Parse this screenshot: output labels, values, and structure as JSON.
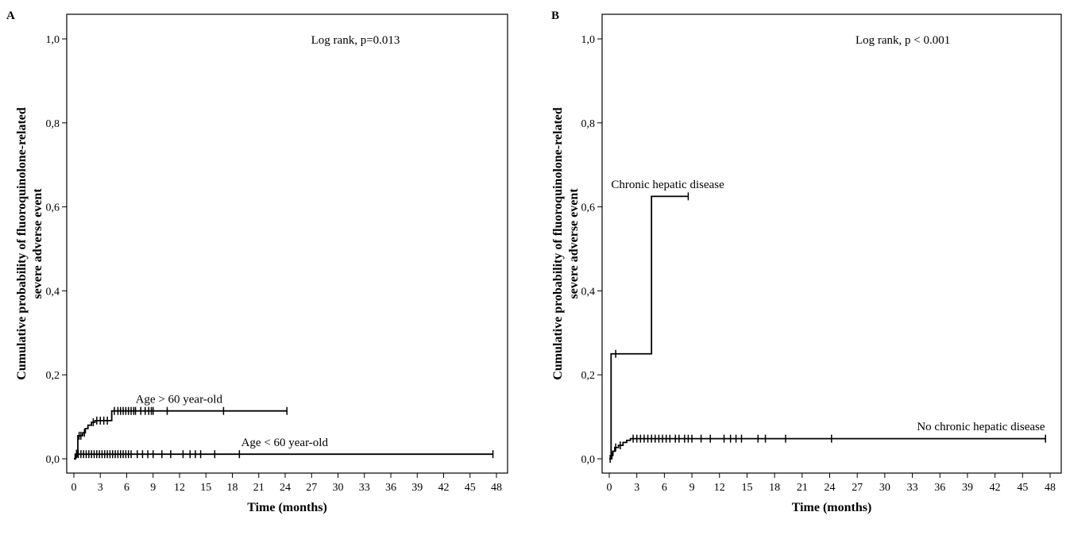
{
  "chart_data": [
    {
      "panel": "A",
      "type": "line",
      "step": true,
      "annotation": "Log rank, p=0.013",
      "xlabel": "Time (months)",
      "ylabel_lines": [
        "Cumulative probability of fluoroquinolone-related",
        "severe adverse event"
      ],
      "xlim": [
        0,
        48
      ],
      "ylim": [
        0,
        1
      ],
      "x_ticks": [
        0,
        3,
        6,
        9,
        12,
        15,
        18,
        21,
        24,
        27,
        30,
        33,
        36,
        39,
        42,
        45,
        48
      ],
      "y_ticks": [
        0.0,
        0.2,
        0.4,
        0.6,
        0.8,
        1.0
      ],
      "y_tick_labels": [
        "0,0",
        "0,2",
        "0,4",
        "0,6",
        "0,8",
        "1,0"
      ],
      "series": [
        {
          "name": "Age > 60 year-old",
          "steps": [
            [
              0,
              0
            ],
            [
              0.2,
              0.005
            ],
            [
              0.35,
              0.02
            ],
            [
              0.45,
              0.055
            ],
            [
              1.0,
              0.062
            ],
            [
              1.3,
              0.072
            ],
            [
              1.6,
              0.08
            ],
            [
              2.0,
              0.087
            ],
            [
              2.4,
              0.091
            ],
            [
              4.3,
              0.114
            ],
            [
              24.2,
              0.114
            ]
          ],
          "censored": [
            0.6,
            0.8,
            1.2,
            2.2,
            2.6,
            3.0,
            3.4,
            3.8,
            4.6,
            5.0,
            5.3,
            5.6,
            5.9,
            6.2,
            6.5,
            6.8,
            7.0,
            7.6,
            8.1,
            8.5,
            8.8,
            9.0,
            10.6,
            17.0,
            24.2
          ],
          "label_at": [
            7.0,
            0.133
          ]
        },
        {
          "name": "Age < 60 year-old",
          "steps": [
            [
              0,
              0
            ],
            [
              0.15,
              0.011
            ],
            [
              47.6,
              0.011
            ]
          ],
          "censored": [
            0.3,
            0.5,
            0.8,
            1.1,
            1.4,
            1.7,
            2.0,
            2.3,
            2.6,
            2.9,
            3.2,
            3.5,
            3.8,
            4.1,
            4.4,
            4.7,
            5.0,
            5.3,
            5.6,
            5.9,
            6.2,
            6.5,
            7.2,
            7.8,
            8.4,
            9.0,
            10.0,
            11.0,
            12.4,
            13.2,
            13.8,
            14.4,
            16.0,
            18.8,
            47.6
          ],
          "label_at": [
            19.0,
            0.03
          ]
        }
      ]
    },
    {
      "panel": "B",
      "type": "line",
      "step": true,
      "annotation": "Log rank, p < 0.001",
      "xlabel": "Time (months)",
      "ylabel_lines": [
        "Cumulative probability of fluoroquinolone-related",
        "severe adverse event"
      ],
      "xlim": [
        0,
        48
      ],
      "ylim": [
        0,
        1
      ],
      "x_ticks": [
        0,
        3,
        6,
        9,
        12,
        15,
        18,
        21,
        24,
        27,
        30,
        33,
        36,
        39,
        42,
        45,
        48
      ],
      "y_ticks": [
        0.0,
        0.2,
        0.4,
        0.6,
        0.8,
        1.0
      ],
      "y_tick_labels": [
        "0,0",
        "0,2",
        "0,4",
        "0,6",
        "0,8",
        "1,0"
      ],
      "series": [
        {
          "name": "Chronic hepatic disease",
          "steps": [
            [
              0,
              0
            ],
            [
              0.2,
              0.25
            ],
            [
              4.6,
              0.625
            ],
            [
              8.6,
              0.625
            ]
          ],
          "censored": [
            0.7,
            8.6
          ],
          "label_at": [
            0.2,
            0.645
          ]
        },
        {
          "name": "No chronic hepatic disease",
          "steps": [
            [
              0,
              0
            ],
            [
              0.2,
              0.008
            ],
            [
              0.4,
              0.018
            ],
            [
              0.6,
              0.027
            ],
            [
              1.0,
              0.032
            ],
            [
              1.5,
              0.039
            ],
            [
              1.9,
              0.044
            ],
            [
              2.3,
              0.048
            ],
            [
              47.5,
              0.048
            ]
          ],
          "censored": [
            0.1,
            0.3,
            0.7,
            1.2,
            2.6,
            3.0,
            3.4,
            3.8,
            4.2,
            4.6,
            5.0,
            5.4,
            5.8,
            6.2,
            6.6,
            7.2,
            7.6,
            8.2,
            8.6,
            9.0,
            10.0,
            11.0,
            12.5,
            13.2,
            13.8,
            14.4,
            16.2,
            17.0,
            19.2,
            24.2,
            47.5
          ],
          "label_at": [
            33.5,
            0.068
          ]
        }
      ]
    }
  ]
}
